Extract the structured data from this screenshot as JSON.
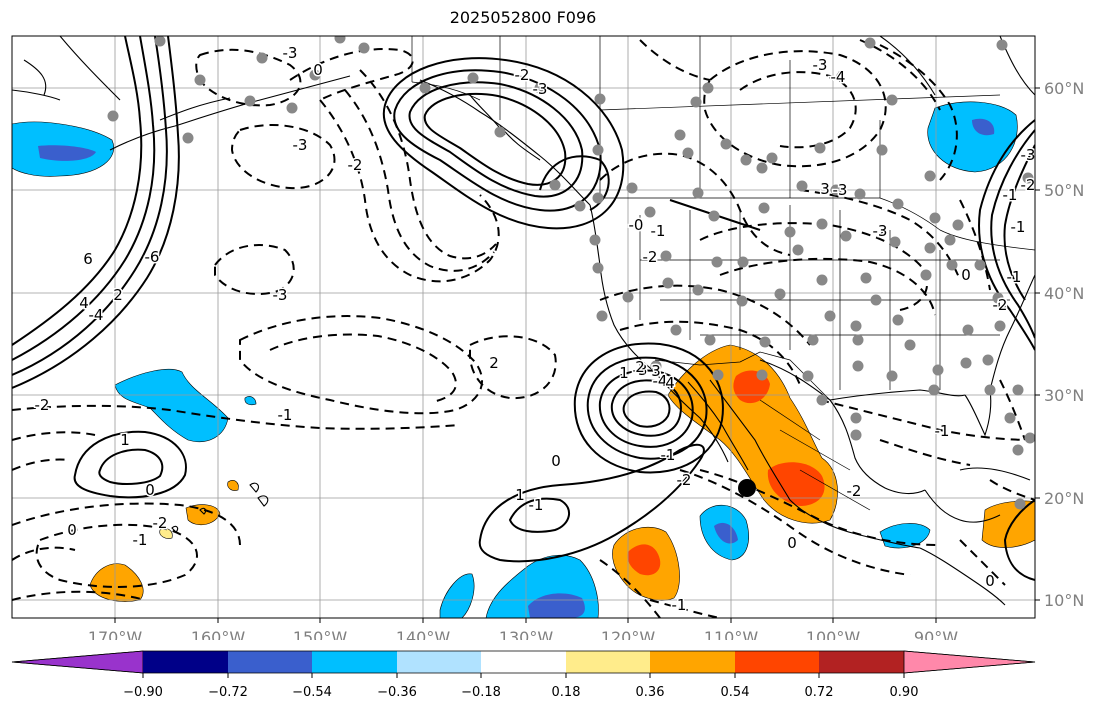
{
  "map": {
    "title": "2025052800 F096",
    "lon_labels": [
      "170°W",
      "160°W",
      "150°W",
      "140°W",
      "130°W",
      "120°W",
      "110°W",
      "100°W",
      "90°W"
    ],
    "lat_labels": [
      "60°N",
      "50°N",
      "40°N",
      "30°N",
      "20°N",
      "10°N"
    ],
    "extent": {
      "lon_min": -178,
      "lon_max": -78,
      "lat_min": 8,
      "lat_max": 65
    }
  },
  "contour_labels": [
    "-3",
    "-3",
    "-2",
    "0",
    "-2",
    "-3",
    "-3",
    "-1",
    "2",
    "-3",
    "-4",
    "-3",
    "-2",
    "-1",
    "0",
    "6",
    "-6",
    "4",
    "-4",
    "2",
    "-2",
    "1",
    "0",
    "-3",
    "-2",
    "1",
    "0",
    "-1",
    "-2",
    "0",
    "1",
    "0",
    "-1",
    "-2",
    "-1",
    "0",
    "-2",
    "1",
    "2",
    "3",
    "4",
    "-0",
    "-1",
    "-2",
    "-1",
    "-1",
    "0",
    "-3",
    "-4",
    "-1",
    "3",
    "-4",
    "-3",
    "-2",
    "0",
    "-1"
  ],
  "colorbar": {
    "tick_labels": [
      "−0.90",
      "−0.72",
      "−0.54",
      "−0.36",
      "−0.18",
      "0.18",
      "0.36",
      "0.54",
      "0.72",
      "0.90"
    ],
    "colors": [
      "#9933cc",
      "#000088",
      "#3a5fcd",
      "#00bfff",
      "#b0e2ff",
      "#ffffff",
      "#ffec8b",
      "#ffa500",
      "#ff4500",
      "#b22222",
      "#ff88aa"
    ]
  }
}
